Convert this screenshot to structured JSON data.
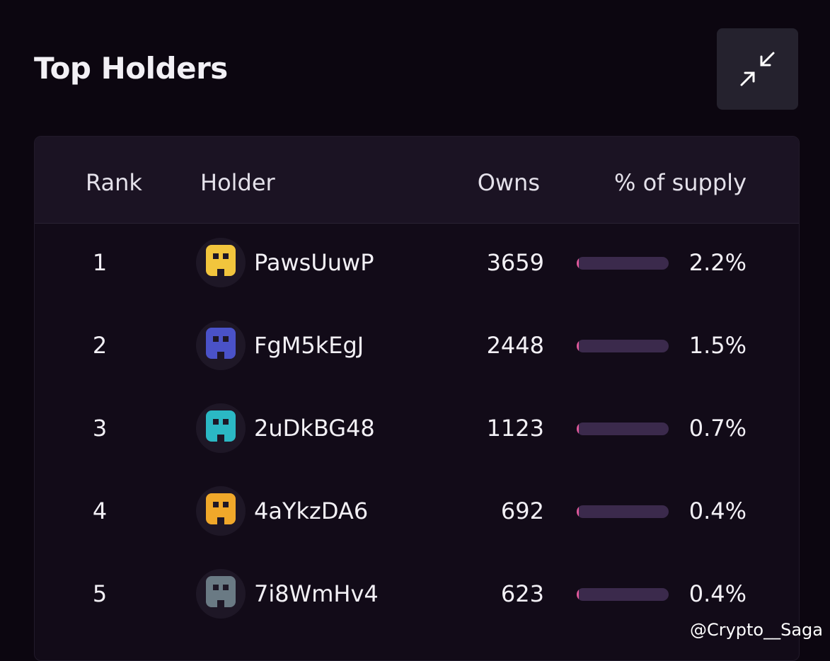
{
  "header": {
    "title": "Top Holders"
  },
  "table": {
    "columns": [
      "Rank",
      "Holder",
      "Owns",
      "% of supply"
    ],
    "rows": [
      [
        1,
        "PawsUuwP",
        3659,
        "2.2%"
      ],
      [
        2,
        "FgM5kEgJ",
        2448,
        "1.5%"
      ],
      [
        3,
        "2uDkBG48",
        1123,
        "0.7%"
      ],
      [
        4,
        "4aYkzDA6",
        692,
        "0.4%"
      ],
      [
        5,
        "7i8WmHv4",
        623,
        "0.4%"
      ]
    ]
  },
  "watermark": "@Crypto__Saga"
}
